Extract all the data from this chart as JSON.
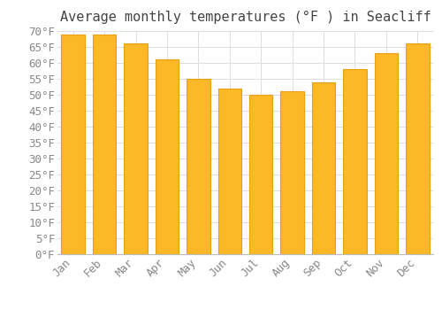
{
  "title": "Average monthly temperatures (°F ) in Seacliff",
  "months": [
    "Jan",
    "Feb",
    "Mar",
    "Apr",
    "May",
    "Jun",
    "Jul",
    "Aug",
    "Sep",
    "Oct",
    "Nov",
    "Dec"
  ],
  "values": [
    69,
    69,
    66,
    61,
    55,
    52,
    50,
    51,
    54,
    58,
    63,
    66
  ],
  "bar_color": "#FDB827",
  "bar_edge_color": "#E8A010",
  "background_color": "#FFFFFF",
  "plot_bg_color": "#FFFFFF",
  "grid_color": "#DDDDDD",
  "ylim": [
    0,
    70
  ],
  "ytick_step": 5,
  "title_fontsize": 11,
  "tick_fontsize": 9,
  "font_family": "monospace",
  "title_color": "#444444",
  "tick_color": "#888888"
}
